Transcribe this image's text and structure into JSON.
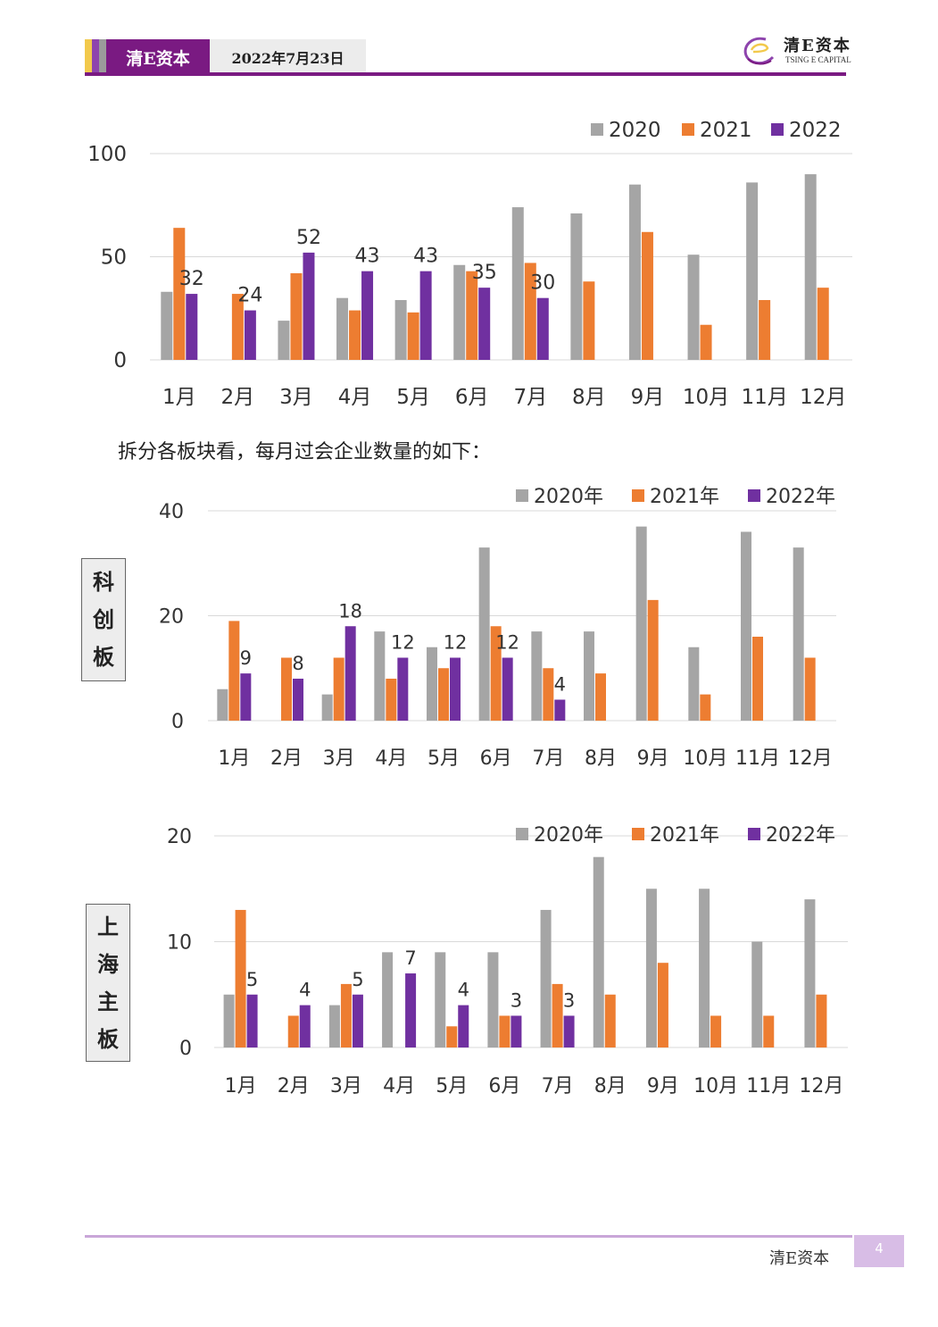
{
  "header": {
    "brand": "清E资本",
    "date": "2022年7月23日",
    "logo_cn": "清E资本",
    "logo_en": "TSING E CAPITAL",
    "accent_color": "#7a1a82",
    "strip_colors": [
      "#f2c94c",
      "#8e44ad",
      "#9b9b9b"
    ]
  },
  "paragraph": "拆分各板块看，每月过会企业数量的如下：",
  "section_labels": {
    "kechuang": [
      "科",
      "创",
      "板"
    ],
    "shanghai": [
      "上",
      "海",
      "主",
      "板"
    ]
  },
  "footer": {
    "brand": "清E资本",
    "page": "4"
  },
  "colors": {
    "s2020": "#a5a5a5",
    "s2021": "#ed7d31",
    "s2022": "#7030a0",
    "grid": "#d9d9d9"
  },
  "chart_data": [
    {
      "type": "bar",
      "categories": [
        "1月",
        "2月",
        "3月",
        "4月",
        "5月",
        "6月",
        "7月",
        "8月",
        "9月",
        "10月",
        "11月",
        "12月"
      ],
      "series": [
        {
          "name": "2020",
          "values": [
            33,
            0,
            19,
            30,
            29,
            46,
            74,
            71,
            85,
            51,
            86,
            90
          ]
        },
        {
          "name": "2021",
          "values": [
            64,
            32,
            42,
            24,
            23,
            43,
            47,
            38,
            62,
            17,
            29,
            35
          ]
        },
        {
          "name": "2022",
          "values": [
            32,
            24,
            52,
            43,
            43,
            35,
            30,
            null,
            null,
            null,
            null,
            null
          ]
        }
      ],
      "data_labels_series": "2022",
      "yticks": [
        0,
        50,
        100
      ],
      "ylim": [
        0,
        100
      ],
      "grid": true,
      "legend": "top-right"
    },
    {
      "type": "bar",
      "categories": [
        "1月",
        "2月",
        "3月",
        "4月",
        "5月",
        "6月",
        "7月",
        "8月",
        "9月",
        "10月",
        "11月",
        "12月"
      ],
      "series": [
        {
          "name": "2020年",
          "values": [
            6,
            0,
            5,
            17,
            14,
            33,
            17,
            17,
            37,
            14,
            36,
            33
          ]
        },
        {
          "name": "2021年",
          "values": [
            19,
            12,
            12,
            8,
            10,
            18,
            10,
            9,
            23,
            5,
            16,
            12
          ]
        },
        {
          "name": "2022年",
          "values": [
            9,
            8,
            18,
            12,
            12,
            12,
            4,
            null,
            null,
            null,
            null,
            null
          ]
        }
      ],
      "data_labels_series": "2022年",
      "yticks": [
        0,
        20,
        40
      ],
      "ylim": [
        0,
        40
      ],
      "grid": true,
      "legend": "top-right"
    },
    {
      "type": "bar",
      "categories": [
        "1月",
        "2月",
        "3月",
        "4月",
        "5月",
        "6月",
        "7月",
        "8月",
        "9月",
        "10月",
        "11月",
        "12月"
      ],
      "series": [
        {
          "name": "2020年",
          "values": [
            5,
            0,
            4,
            9,
            9,
            9,
            13,
            18,
            15,
            15,
            10,
            14
          ]
        },
        {
          "name": "2021年",
          "values": [
            13,
            3,
            6,
            0,
            2,
            3,
            6,
            5,
            8,
            3,
            3,
            5
          ]
        },
        {
          "name": "2022年",
          "values": [
            5,
            4,
            5,
            7,
            4,
            3,
            3,
            null,
            null,
            null,
            null,
            null
          ]
        }
      ],
      "data_labels_series": "2022年",
      "yticks": [
        0,
        10,
        20
      ],
      "ylim": [
        0,
        20
      ],
      "grid": true,
      "legend": "top-right"
    }
  ]
}
